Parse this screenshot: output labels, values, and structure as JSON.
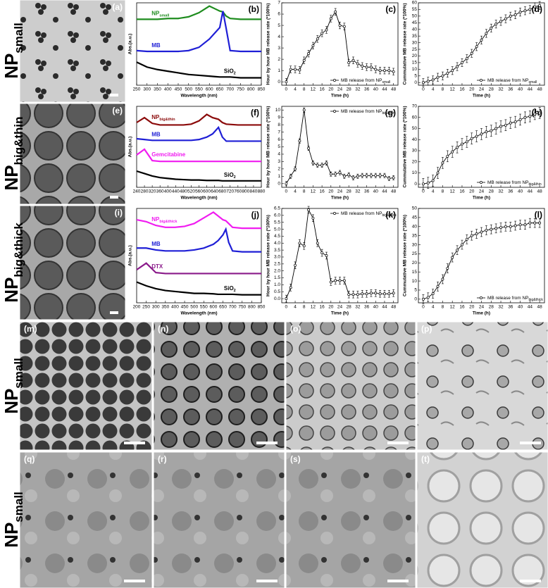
{
  "row_labels": [
    {
      "main": "NP",
      "sub": "small"
    },
    {
      "main": "NP",
      "sub": "big&thin"
    },
    {
      "main": "NP",
      "sub": "big&thick"
    },
    {
      "main": "NP",
      "sub": "small"
    },
    {
      "main": "NP",
      "sub": "small"
    }
  ],
  "images": [
    "(a)",
    "(e)",
    "(i)",
    "(m)",
    "(n)",
    "(o)",
    "(p)",
    "(q)",
    "(r)",
    "(s)",
    "(t)"
  ],
  "chart_data": [
    {
      "type": "line",
      "panel": "(b)",
      "xlabel": "Wavelength (nm)",
      "ylabel": "Abs.(a.u.)",
      "x": [
        250,
        300,
        350,
        400,
        450,
        500,
        550,
        600,
        625,
        650,
        665,
        680,
        700,
        750,
        800,
        850
      ],
      "xlim": [
        250,
        850
      ],
      "xticks": [
        250,
        300,
        350,
        400,
        450,
        500,
        550,
        600,
        650,
        700,
        750,
        800,
        850
      ],
      "ylim": [
        0,
        1
      ],
      "series": [
        {
          "name": "NP",
          "sub": "small",
          "color": "#1e8c1e",
          "values": [
            0.8,
            0.8,
            0.8,
            0.81,
            0.81,
            0.83,
            0.88,
            0.96,
            0.93,
            0.9,
            0.89,
            0.84,
            0.81,
            0.8,
            0.8,
            0.8
          ]
        },
        {
          "name": "MB",
          "sub": "",
          "color": "#1f1fd6",
          "values": [
            0.42,
            0.41,
            0.41,
            0.41,
            0.41,
            0.42,
            0.46,
            0.56,
            0.63,
            0.7,
            0.9,
            0.7,
            0.42,
            0.41,
            0.41,
            0.41
          ]
        },
        {
          "name": "SiO",
          "sub": "2",
          "color": "#000000",
          "values": [
            0.28,
            0.22,
            0.19,
            0.17,
            0.15,
            0.13,
            0.12,
            0.11,
            0.105,
            0.1,
            0.1,
            0.1,
            0.1,
            0.09,
            0.09,
            0.09
          ]
        }
      ]
    },
    {
      "type": "line",
      "panel": "(c)",
      "xlabel": "Time (h)",
      "ylabel": "Hour by hour MB release rate (*100%)",
      "x": [
        0,
        2,
        4,
        6,
        8,
        10,
        12,
        14,
        16,
        18,
        20,
        22,
        24,
        26,
        28,
        30,
        32,
        34,
        36,
        38,
        40,
        42,
        44,
        46,
        48
      ],
      "xlim": [
        -2,
        50
      ],
      "xticks": [
        0,
        4,
        8,
        12,
        16,
        20,
        24,
        28,
        32,
        36,
        40,
        44,
        48
      ],
      "ylim": [
        -0.3,
        7
      ],
      "yticks": [
        0,
        1,
        2,
        3,
        4,
        5,
        6,
        7
      ],
      "error": 0.3,
      "legend": "lower right",
      "series": [
        {
          "name": "MB release from NP",
          "sub": "small",
          "color": "#000000",
          "values": [
            0,
            1.1,
            1.1,
            1.05,
            1.9,
            2.5,
            3.2,
            3.8,
            4.3,
            4.6,
            5.6,
            6.2,
            5.0,
            4.9,
            1.7,
            1.9,
            1.6,
            1.4,
            1.3,
            1.3,
            1.1,
            1.0,
            1.0,
            1.0,
            0.9
          ]
        }
      ]
    },
    {
      "type": "line",
      "panel": "(d)",
      "xlabel": "Time (h)",
      "ylabel": "Cummulative MB release rate (*100%)",
      "x": [
        0,
        2,
        4,
        6,
        8,
        10,
        12,
        14,
        16,
        18,
        20,
        22,
        24,
        26,
        28,
        30,
        32,
        34,
        36,
        38,
        40,
        42,
        44,
        46,
        48
      ],
      "xlim": [
        -2,
        50
      ],
      "xticks": [
        0,
        4,
        8,
        12,
        16,
        20,
        24,
        28,
        32,
        36,
        40,
        44,
        48
      ],
      "ylim": [
        -2,
        60
      ],
      "yticks": [
        0,
        5,
        10,
        15,
        20,
        25,
        30,
        35,
        40,
        45,
        50,
        55,
        60
      ],
      "error": 3,
      "legend": "lower right",
      "series": [
        {
          "name": "MB release from NP",
          "sub": "small",
          "color": "#000000",
          "values": [
            0,
            1,
            2,
            4,
            5,
            7,
            9,
            12,
            15,
            18,
            22,
            27,
            32,
            37,
            41,
            44,
            46,
            48,
            50,
            51,
            53,
            54,
            55,
            57,
            58
          ]
        }
      ]
    },
    {
      "type": "line",
      "panel": "(f)",
      "xlabel": "Wavelength (nm)",
      "ylabel": "Abs.(a.u.)",
      "x": [
        240,
        280,
        320,
        360,
        400,
        440,
        480,
        520,
        560,
        600,
        630,
        660,
        680,
        700,
        760,
        820,
        880
      ],
      "xlim": [
        240,
        880
      ],
      "xticks": [
        240,
        280,
        320,
        360,
        400,
        440,
        480,
        520,
        560,
        600,
        640,
        680,
        720,
        760,
        800,
        840,
        880
      ],
      "ylim": [
        0,
        1
      ],
      "series": [
        {
          "name": "NP",
          "sub": "big&thin",
          "color": "#8b0a0a",
          "values": [
            0.8,
            0.86,
            0.79,
            0.77,
            0.77,
            0.77,
            0.77,
            0.78,
            0.82,
            0.9,
            0.86,
            0.84,
            0.8,
            0.78,
            0.77,
            0.77,
            0.77
          ]
        },
        {
          "name": "MB",
          "sub": "",
          "color": "#1f1fd6",
          "values": [
            0.6,
            0.59,
            0.58,
            0.58,
            0.58,
            0.58,
            0.58,
            0.58,
            0.59,
            0.62,
            0.66,
            0.74,
            0.62,
            0.57,
            0.57,
            0.57,
            0.57
          ]
        },
        {
          "name": "Gemcitabine",
          "sub": "",
          "color": "#f01cf0",
          "values": [
            0.4,
            0.47,
            0.33,
            0.32,
            0.32,
            0.32,
            0.32,
            0.32,
            0.32,
            0.32,
            0.32,
            0.32,
            0.32,
            0.32,
            0.32,
            0.32,
            0.32
          ]
        },
        {
          "name": "SiO",
          "sub": "2",
          "color": "#000000",
          "values": [
            0.2,
            0.17,
            0.14,
            0.12,
            0.11,
            0.1,
            0.095,
            0.09,
            0.09,
            0.085,
            0.085,
            0.085,
            0.08,
            0.08,
            0.08,
            0.08,
            0.08
          ]
        }
      ]
    },
    {
      "type": "line",
      "panel": "(g)",
      "xlabel": "Time (h)",
      "ylabel": "Hour by hour MB release rate (*100%)",
      "x": [
        0,
        2,
        4,
        6,
        8,
        10,
        12,
        14,
        16,
        18,
        20,
        22,
        24,
        26,
        28,
        30,
        32,
        34,
        36,
        38,
        40,
        42,
        44,
        46,
        48
      ],
      "xlim": [
        -2,
        50
      ],
      "xticks": [
        0,
        4,
        8,
        12,
        16,
        20,
        24,
        28,
        32,
        36,
        40,
        44,
        48
      ],
      "ylim": [
        -0.5,
        10.5
      ],
      "yticks": [
        0,
        1,
        2,
        3,
        4,
        5,
        6,
        7,
        8,
        9,
        10
      ],
      "error": 0.3,
      "legend": "upper right",
      "series": [
        {
          "name": "MB release from NP",
          "sub": "big&thin",
          "color": "#000000",
          "values": [
            0,
            1,
            2,
            5.8,
            10,
            4.8,
            2.8,
            2.5,
            2.5,
            2.8,
            1.3,
            1.3,
            1.5,
            1,
            1.2,
            0.8,
            1,
            1.1,
            1.1,
            1.1,
            1.1,
            1.1,
            1.1,
            0.7,
            0.8
          ]
        }
      ]
    },
    {
      "type": "line",
      "panel": "(h)",
      "xlabel": "Time (h)",
      "ylabel": "Cummulative MB release rate (*100%)",
      "x": [
        0,
        2,
        4,
        6,
        8,
        10,
        12,
        14,
        16,
        18,
        20,
        22,
        24,
        26,
        28,
        30,
        32,
        34,
        36,
        38,
        40,
        42,
        44,
        46,
        48
      ],
      "xlim": [
        -2,
        50
      ],
      "xticks": [
        0,
        4,
        8,
        12,
        16,
        20,
        24,
        28,
        32,
        36,
        40,
        44,
        48
      ],
      "ylim": [
        -3,
        70
      ],
      "yticks": [
        0,
        10,
        20,
        30,
        40,
        50,
        60,
        70
      ],
      "error": 5,
      "legend": "lower right",
      "series": [
        {
          "name": "MB release from NP",
          "sub": "big&thin",
          "color": "#000000",
          "values": [
            0,
            1,
            3,
            10,
            19,
            25,
            29,
            33,
            36,
            38,
            41,
            43,
            45,
            47,
            48,
            50,
            52,
            53,
            55,
            56,
            58,
            60,
            61,
            63,
            64
          ]
        }
      ]
    },
    {
      "type": "line",
      "panel": "(j)",
      "xlabel": "Wavelength (nm)",
      "ylabel": "Abs.(a.u.)",
      "x": [
        200,
        250,
        300,
        350,
        400,
        450,
        500,
        550,
        600,
        625,
        650,
        665,
        680,
        700,
        750,
        800,
        850
      ],
      "xlim": [
        200,
        850
      ],
      "xticks": [
        200,
        250,
        300,
        350,
        400,
        450,
        500,
        550,
        600,
        650,
        700,
        750,
        800,
        850
      ],
      "ylim": [
        0,
        1
      ],
      "series": [
        {
          "name": "NP",
          "sub": "big&thick",
          "color": "#f01cf0",
          "values": [
            0.88,
            0.86,
            0.82,
            0.8,
            0.8,
            0.81,
            0.84,
            0.9,
            0.96,
            0.92,
            0.88,
            0.87,
            0.84,
            0.8,
            0.79,
            0.79,
            0.79
          ]
        },
        {
          "name": "MB",
          "sub": "",
          "color": "#1f1fd6",
          "values": [
            0.58,
            0.58,
            0.56,
            0.55,
            0.55,
            0.55,
            0.56,
            0.58,
            0.62,
            0.66,
            0.72,
            0.78,
            0.64,
            0.55,
            0.54,
            0.54,
            0.54
          ]
        },
        {
          "name": "DTX",
          "sub": "",
          "color": "#8a1a8a",
          "values": [
            0.35,
            0.42,
            0.32,
            0.31,
            0.31,
            0.31,
            0.31,
            0.31,
            0.31,
            0.31,
            0.31,
            0.31,
            0.31,
            0.31,
            0.31,
            0.31,
            0.31
          ]
        },
        {
          "name": "SiO",
          "sub": "2",
          "color": "#000000",
          "values": [
            0.22,
            0.18,
            0.15,
            0.13,
            0.12,
            0.11,
            0.1,
            0.1,
            0.095,
            0.09,
            0.09,
            0.09,
            0.09,
            0.09,
            0.085,
            0.085,
            0.085
          ]
        }
      ]
    },
    {
      "type": "line",
      "panel": "(k)",
      "xlabel": "Time (h)",
      "ylabel": "Hour by hour MB release rate (*100%)",
      "x": [
        0,
        2,
        4,
        6,
        8,
        10,
        12,
        14,
        16,
        18,
        20,
        22,
        24,
        26,
        28,
        30,
        32,
        34,
        36,
        38,
        40,
        42,
        44,
        46,
        48
      ],
      "xlim": [
        -2,
        50
      ],
      "xticks": [
        0,
        4,
        8,
        12,
        16,
        20,
        24,
        28,
        32,
        36,
        40,
        44,
        48
      ],
      "ylim": [
        -0.3,
        6.5
      ],
      "yticks": [
        {
          "value": 0,
          "label": "0.0"
        },
        0.5,
        {
          "value": 1,
          "label": "1.0"
        },
        1.5,
        {
          "value": 2,
          "label": "2.0"
        },
        2.5,
        {
          "value": 3,
          "label": "3.0"
        },
        3.5,
        {
          "value": 4,
          "label": "4.0"
        },
        4.5,
        {
          "value": 5,
          "label": "5.0"
        },
        5.5,
        {
          "value": 6,
          "label": "6.0"
        },
        6.5
      ],
      "error": 0.25,
      "legend": "upper right",
      "series": [
        {
          "name": "MB release from NP",
          "sub": "big&thick",
          "color": "#000000",
          "values": [
            0,
            0.8,
            2.4,
            4.0,
            3.8,
            6.4,
            5.8,
            4.0,
            3.3,
            3.1,
            1.2,
            1.3,
            1.3,
            1.3,
            0.3,
            0.3,
            0.3,
            0.35,
            0.35,
            0.4,
            0.4,
            0.35,
            0.35,
            0.35,
            0.4
          ]
        }
      ]
    },
    {
      "type": "line",
      "panel": "(l)",
      "xlabel": "Time (h)",
      "ylabel": "Cummulative MB release rate (*100%)",
      "x": [
        0,
        2,
        4,
        6,
        8,
        10,
        12,
        14,
        16,
        18,
        20,
        22,
        24,
        26,
        28,
        30,
        32,
        34,
        36,
        38,
        40,
        42,
        44,
        46,
        48
      ],
      "xlim": [
        -2,
        50
      ],
      "xticks": [
        0,
        4,
        8,
        12,
        16,
        20,
        24,
        28,
        32,
        36,
        40,
        44,
        48
      ],
      "ylim": [
        -2,
        50
      ],
      "yticks": [
        0,
        5,
        10,
        15,
        20,
        25,
        30,
        35,
        40,
        45,
        50
      ],
      "error": 2.5,
      "legend": "lower right",
      "series": [
        {
          "name": "MB release from NP",
          "sub": "big&thick",
          "color": "#000000",
          "values": [
            0,
            1,
            3,
            7,
            11,
            17,
            23,
            27,
            30,
            33,
            35,
            36,
            37,
            38,
            38.5,
            39,
            39.5,
            40,
            40,
            40.5,
            41,
            41,
            42,
            42,
            42
          ]
        }
      ]
    }
  ]
}
